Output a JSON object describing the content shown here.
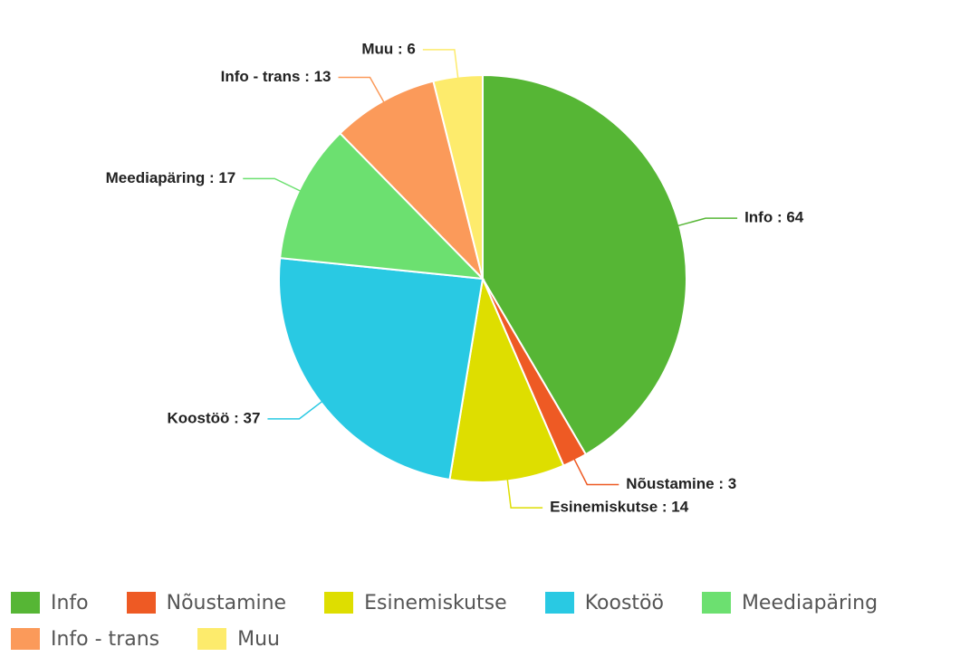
{
  "chart_data": {
    "type": "pie",
    "categories": [
      "Info",
      "Nõustamine",
      "Esinemiskutse",
      "Koostöö",
      "Meediapäring",
      "Info - trans",
      "Muu"
    ],
    "values": [
      64,
      3,
      14,
      37,
      17,
      13,
      6
    ],
    "value_labels": [
      "Info : 64",
      "Nõustamine : 3",
      "Esinemiskutse : 14",
      "Koostöö : 37",
      "Meediapäring : 17",
      "Info - trans : 13",
      "Muu : 6"
    ],
    "colors": [
      "#56b635",
      "#ee5a24",
      "#dede00",
      "#29c9e3",
      "#6ce070",
      "#fb9a5a",
      "#fdeb6c"
    ]
  }
}
